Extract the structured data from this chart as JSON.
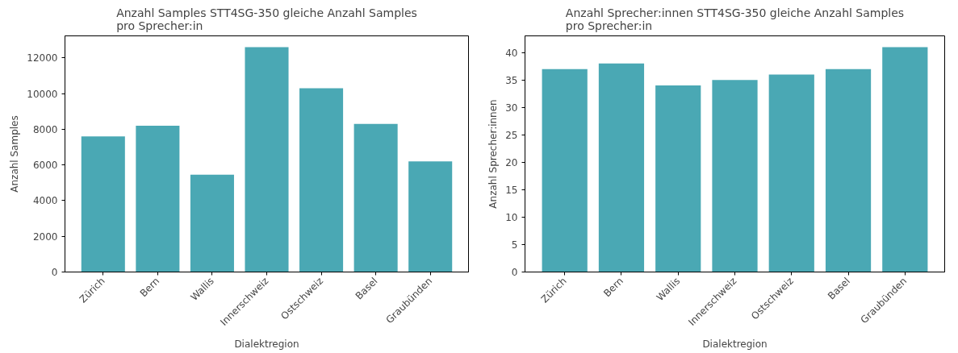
{
  "chart_data": [
    {
      "type": "bar",
      "title": "Anzahl Samples STT4SG-350 gleiche Anzahl Samples\npro Sprecher:in",
      "xlabel": "Dialektregion",
      "ylabel": "Anzahl Samples",
      "categories": [
        "Zürich",
        "Bern",
        "Wallis",
        "Innerschweiz",
        "Ostschweiz",
        "Basel",
        "Graubünden"
      ],
      "values": [
        7600,
        8200,
        5450,
        12600,
        10300,
        8300,
        6200
      ],
      "color": "#4aa8b4",
      "ylim": [
        0,
        13230
      ],
      "yticks": [
        0,
        2000,
        4000,
        6000,
        8000,
        10000,
        12000
      ],
      "grid": false
    },
    {
      "type": "bar",
      "title": "Anzahl Sprecher:innen STT4SG-350 gleiche Anzahl Samples\npro Sprecher:in",
      "xlabel": "Dialektregion",
      "ylabel": "Anzahl Sprecher:innen",
      "categories": [
        "Zürich",
        "Bern",
        "Wallis",
        "Innerschweiz",
        "Ostschweiz",
        "Basel",
        "Graubünden"
      ],
      "values": [
        37,
        38,
        34,
        35,
        36,
        37,
        41
      ],
      "color": "#4aa8b4",
      "ylim": [
        0,
        43.05
      ],
      "yticks": [
        0,
        5,
        10,
        15,
        20,
        25,
        30,
        35,
        40
      ],
      "grid": false
    }
  ]
}
